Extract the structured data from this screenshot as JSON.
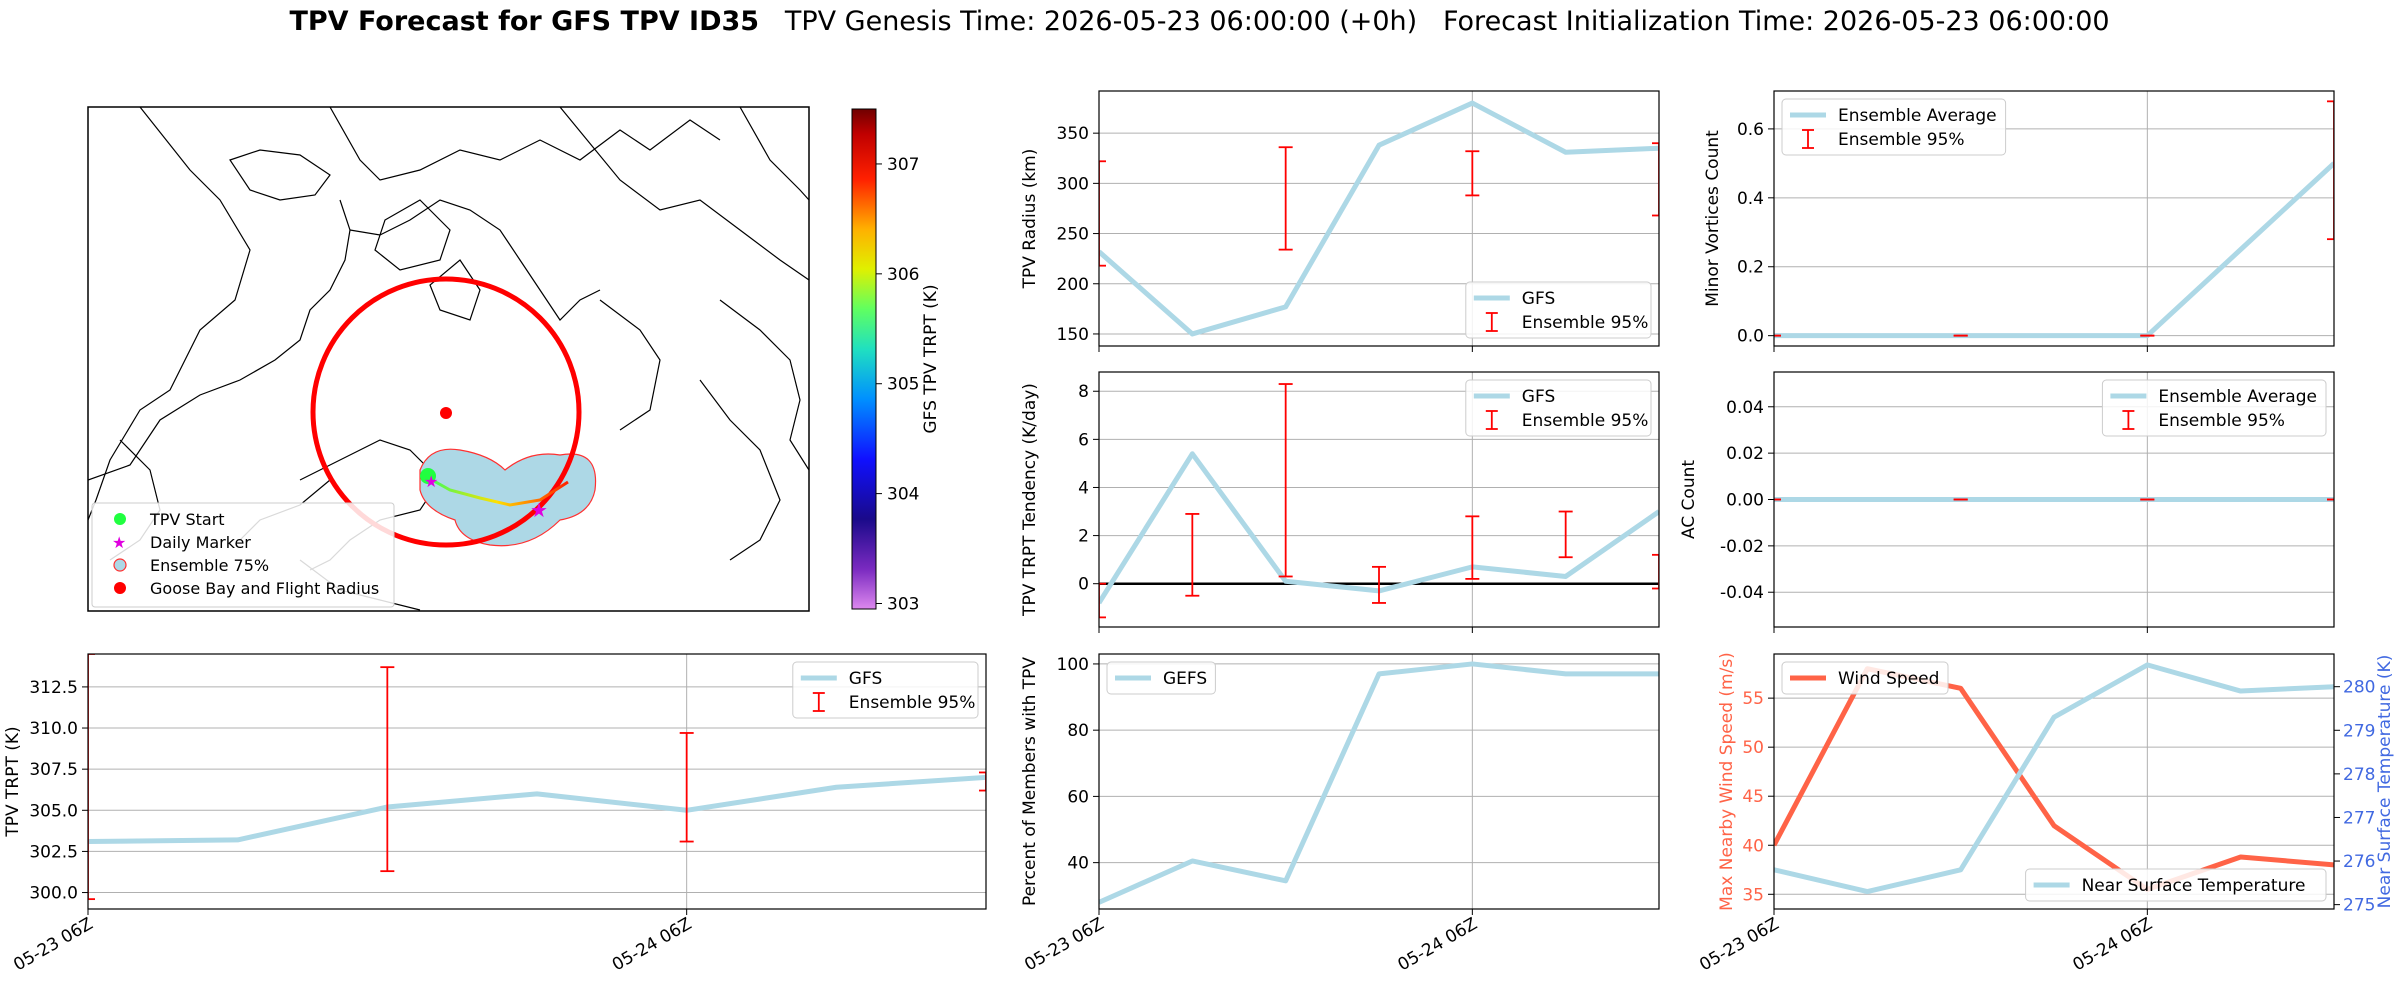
{
  "title": {
    "bold": "TPV Forecast for GFS TPV ID35",
    "genesis": "TPV Genesis Time: 2026-05-23 06:00:00 (+0h)",
    "init": "Forecast Initialization Time: 2026-05-23 06:00:00"
  },
  "colors": {
    "series_main": "#add8e6",
    "errorbar": "#ff0000",
    "wind": "#ff6347",
    "temp_axis": "#4169e1",
    "circle": "#ff0000"
  },
  "chart_data": [
    {
      "id": "map",
      "type": "map",
      "colorbar": {
        "label": "GFS TPV TRPT (K)",
        "ticks": [
          303,
          304,
          305,
          306,
          307
        ],
        "range": [
          302.95,
          307.5
        ],
        "colormap": "gnuplot2-like (violet to red)"
      },
      "legend": {
        "placement": "lower-left",
        "entries": [
          {
            "label": "TPV Start",
            "marker": "green-circle"
          },
          {
            "label": "Daily Marker",
            "marker": "magenta-star"
          },
          {
            "label": "Ensemble 75%",
            "marker": "lightblue-circle-red-edge"
          },
          {
            "label": "Goose Bay and Flight Radius",
            "marker": "red-circle"
          }
        ]
      }
    },
    {
      "id": "trpt",
      "type": "line",
      "ylabel": "TPV TRPT (K)",
      "x": [
        "2026-05-23 06Z",
        "2026-05-23 12Z",
        "2026-05-23 18Z",
        "2026-05-24 00Z",
        "2026-05-24 06Z",
        "2026-05-24 12Z",
        "2026-05-24 18Z"
      ],
      "series": [
        {
          "name": "GFS",
          "values": [
            303.1,
            303.2,
            305.2,
            306.0,
            305.0,
            306.4,
            307.0
          ]
        }
      ],
      "errorbars": [
        {
          "x": "2026-05-23 06Z",
          "low": 299.6,
          "high": 314.5
        },
        {
          "x": "2026-05-23 18Z",
          "low": 301.3,
          "high": 313.7
        },
        {
          "x": "2026-05-24 06Z",
          "low": 303.1,
          "high": 309.7
        },
        {
          "x": "2026-05-24 18Z",
          "low": 306.2,
          "high": 307.3
        }
      ],
      "errorbar_name": "Ensemble 95%",
      "yticks": [
        300.0,
        302.5,
        305.0,
        307.5,
        310.0,
        312.5
      ],
      "ylim": [
        299.0,
        314.5
      ],
      "xticks": [
        "05-23 06Z",
        "05-24 06Z"
      ],
      "grid": true,
      "legend": "top-right"
    },
    {
      "id": "radius",
      "type": "line",
      "ylabel": "TPV Radius (km)",
      "x": [
        "2026-05-23 06Z",
        "2026-05-23 12Z",
        "2026-05-23 18Z",
        "2026-05-24 00Z",
        "2026-05-24 06Z",
        "2026-05-24 12Z",
        "2026-05-24 18Z"
      ],
      "series": [
        {
          "name": "GFS",
          "values": [
            232,
            150,
            177,
            338,
            380,
            331,
            335
          ]
        }
      ],
      "errorbars": [
        {
          "x": "2026-05-23 06Z",
          "low": 218,
          "high": 322
        },
        {
          "x": "2026-05-23 18Z",
          "low": 234,
          "high": 336
        },
        {
          "x": "2026-05-24 06Z",
          "low": 288,
          "high": 332
        },
        {
          "x": "2026-05-24 18Z",
          "low": 268,
          "high": 340
        }
      ],
      "errorbar_name": "Ensemble 95%",
      "yticks": [
        150,
        200,
        250,
        300,
        350
      ],
      "ylim": [
        138,
        392
      ],
      "grid": true,
      "legend": "bottom-right"
    },
    {
      "id": "tendency",
      "type": "line",
      "ylabel": "TPV TRPT Tendency (K/day)",
      "x": [
        "2026-05-23 06Z",
        "2026-05-23 12Z",
        "2026-05-23 18Z",
        "2026-05-24 00Z",
        "2026-05-24 06Z",
        "2026-05-24 12Z",
        "2026-05-24 18Z"
      ],
      "series": [
        {
          "name": "GFS",
          "values": [
            -0.8,
            5.4,
            0.1,
            -0.3,
            0.7,
            0.3,
            3.0
          ]
        }
      ],
      "errorbars": [
        {
          "x": "2026-05-23 06Z",
          "low": -1.4,
          "high": 0.0
        },
        {
          "x": "2026-05-23 12Z",
          "low": -0.5,
          "high": 2.9
        },
        {
          "x": "2026-05-23 18Z",
          "low": 0.3,
          "high": 8.3
        },
        {
          "x": "2026-05-24 00Z",
          "low": -0.8,
          "high": 0.7
        },
        {
          "x": "2026-05-24 06Z",
          "low": 0.2,
          "high": 2.8
        },
        {
          "x": "2026-05-24 12Z",
          "low": 1.1,
          "high": 3.0
        },
        {
          "x": "2026-05-24 18Z",
          "low": -0.2,
          "high": 1.2
        }
      ],
      "errorbar_name": "Ensemble 95%",
      "yticks": [
        0,
        2,
        4,
        6,
        8
      ],
      "ylim": [
        -1.8,
        8.8
      ],
      "zero_line": true,
      "grid": true,
      "legend": "top-right"
    },
    {
      "id": "members",
      "type": "line",
      "ylabel": "Percent of Members with TPV",
      "x": [
        "2026-05-23 06Z",
        "2026-05-23 12Z",
        "2026-05-23 18Z",
        "2026-05-24 00Z",
        "2026-05-24 06Z",
        "2026-05-24 12Z",
        "2026-05-24 18Z"
      ],
      "series": [
        {
          "name": "GEFS",
          "values": [
            28,
            40.5,
            34.5,
            97,
            100,
            97,
            97
          ]
        }
      ],
      "yticks": [
        40,
        60,
        80,
        100
      ],
      "ylim": [
        26,
        103
      ],
      "xticks": [
        "05-23 06Z",
        "05-24 06Z"
      ],
      "grid": true,
      "legend": "top-left"
    },
    {
      "id": "minor",
      "type": "line",
      "ylabel": "Minor Vortices Count",
      "x": [
        "2026-05-23 06Z",
        "2026-05-23 12Z",
        "2026-05-23 18Z",
        "2026-05-24 00Z",
        "2026-05-24 06Z",
        "2026-05-24 12Z",
        "2026-05-24 18Z"
      ],
      "series": [
        {
          "name": "Ensemble Average",
          "values": [
            0,
            0,
            0,
            0,
            0,
            0.25,
            0.5
          ]
        }
      ],
      "errorbars": [
        {
          "x": "2026-05-23 06Z",
          "low": 0,
          "high": 0
        },
        {
          "x": "2026-05-23 18Z",
          "low": 0,
          "high": 0
        },
        {
          "x": "2026-05-24 06Z",
          "low": 0,
          "high": 0
        },
        {
          "x": "2026-05-24 18Z",
          "low": 0.28,
          "high": 0.68
        }
      ],
      "errorbar_name": "Ensemble 95%",
      "yticks": [
        0.0,
        0.2,
        0.4,
        0.6
      ],
      "ylim": [
        -0.03,
        0.71
      ],
      "grid": true,
      "legend": "top-left"
    },
    {
      "id": "ac",
      "type": "line",
      "ylabel": "AC Count",
      "x": [
        "2026-05-23 06Z",
        "2026-05-23 12Z",
        "2026-05-23 18Z",
        "2026-05-24 00Z",
        "2026-05-24 06Z",
        "2026-05-24 12Z",
        "2026-05-24 18Z"
      ],
      "series": [
        {
          "name": "Ensemble Average",
          "values": [
            0,
            0,
            0,
            0,
            0,
            0,
            0
          ]
        }
      ],
      "errorbars": [
        {
          "x": "2026-05-23 06Z",
          "low": 0,
          "high": 0
        },
        {
          "x": "2026-05-23 18Z",
          "low": 0,
          "high": 0
        },
        {
          "x": "2026-05-24 06Z",
          "low": 0,
          "high": 0
        },
        {
          "x": "2026-05-24 18Z",
          "low": 0,
          "high": 0
        }
      ],
      "errorbar_name": "Ensemble 95%",
      "yticks": [
        -0.04,
        -0.02,
        0.0,
        0.02,
        0.04
      ],
      "ylim": [
        -0.055,
        0.055
      ],
      "grid": true,
      "legend": "top-right"
    },
    {
      "id": "wind",
      "type": "line",
      "ylabel": "Max Nearby Wind Speed (m/s)",
      "ylabel2": "Near Surface Temperature (K)",
      "x": [
        "2026-05-23 06Z",
        "2026-05-23 12Z",
        "2026-05-23 18Z",
        "2026-05-24 00Z",
        "2026-05-24 06Z",
        "2026-05-24 12Z",
        "2026-05-24 18Z"
      ],
      "series": [
        {
          "name": "Wind Speed",
          "axis": "left",
          "values": [
            40,
            58,
            56,
            42,
            35.5,
            38.8,
            38
          ]
        },
        {
          "name": "Near Surface Temperature",
          "axis": "right",
          "values": [
            275.8,
            275.3,
            275.8,
            279.3,
            280.5,
            279.9,
            280.0
          ]
        }
      ],
      "yticks": [
        35,
        40,
        45,
        50,
        55
      ],
      "ylim": [
        33.5,
        59.5
      ],
      "yticks2": [
        275,
        276,
        277,
        278,
        279,
        280
      ],
      "ylim2": [
        274.9,
        280.75
      ],
      "xticks": [
        "05-23 06Z",
        "05-24 06Z"
      ],
      "grid": true,
      "legend": "top-left, bottom-right"
    }
  ]
}
